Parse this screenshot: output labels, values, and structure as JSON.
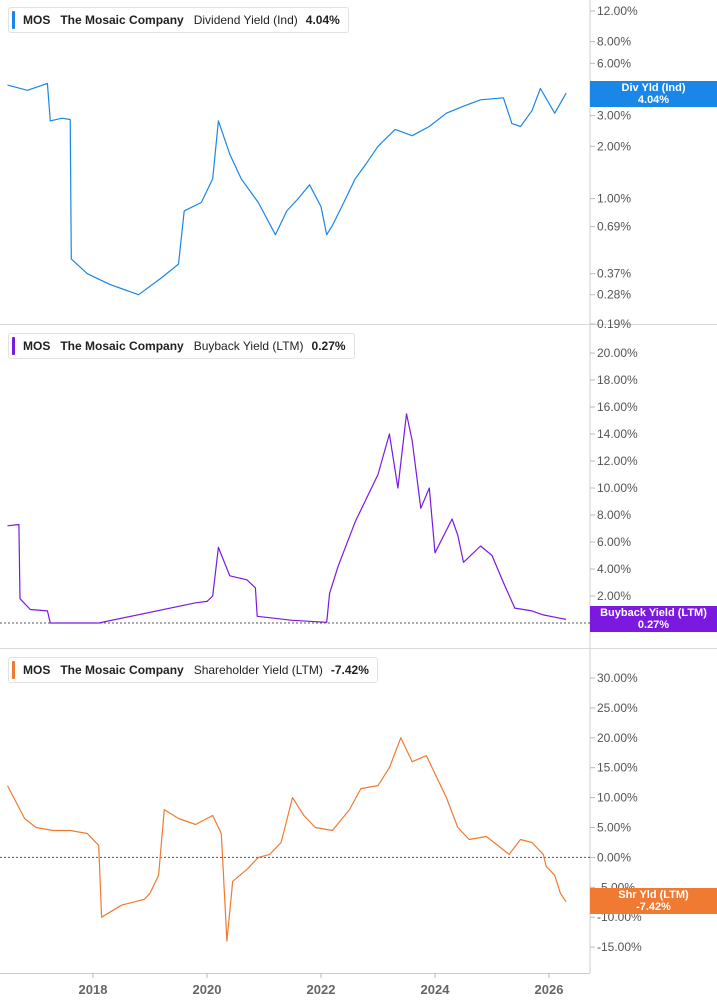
{
  "colors": {
    "dividend": "#1a86e8",
    "buyback": "#7b19e0",
    "shareholder": "#f07a32",
    "divider": "#d9d9d9"
  },
  "panels": [
    {
      "ticker": "MOS",
      "company": "The Mosaic Company",
      "metric": "Dividend Yield (Ind)",
      "value": "4.04%",
      "badge": [
        "Div Yld (Ind)",
        "4.04%"
      ]
    },
    {
      "ticker": "MOS",
      "company": "The Mosaic Company",
      "metric": "Buyback Yield (LTM)",
      "value": "0.27%",
      "badge": [
        "Buyback Yield (LTM)",
        "0.27%"
      ]
    },
    {
      "ticker": "MOS",
      "company": "The Mosaic Company",
      "metric": "Shareholder Yield (LTM)",
      "value": "-7.42%",
      "badge": [
        "Shr Yld (LTM)",
        "-7.42%"
      ]
    }
  ],
  "chart_data": [
    {
      "type": "line",
      "scale": "log",
      "title": "Dividend Yield (Ind)",
      "y_ticks": [
        "12.00%",
        "8.00%",
        "6.00%",
        "4.00%",
        "3.00%",
        "2.00%",
        "1.00%",
        "0.69%",
        "0.37%",
        "0.28%",
        "0.19%"
      ],
      "y_tick_values": [
        12,
        8,
        6,
        4,
        3,
        2,
        1,
        0.69,
        0.37,
        0.28,
        0.19
      ],
      "series": [
        {
          "values": [
            [
              2016.5,
              4.5
            ],
            [
              2016.85,
              4.2
            ],
            [
              2017.2,
              4.6
            ],
            [
              2017.25,
              2.8
            ],
            [
              2017.45,
              2.9
            ],
            [
              2017.6,
              2.85
            ],
            [
              2017.62,
              0.45
            ],
            [
              2017.9,
              0.37
            ],
            [
              2018.3,
              0.32
            ],
            [
              2018.8,
              0.28
            ],
            [
              2019.2,
              0.35
            ],
            [
              2019.5,
              0.42
            ],
            [
              2019.6,
              0.85
            ],
            [
              2019.9,
              0.95
            ],
            [
              2020.1,
              1.3
            ],
            [
              2020.2,
              2.8
            ],
            [
              2020.4,
              1.8
            ],
            [
              2020.6,
              1.3
            ],
            [
              2020.9,
              0.95
            ],
            [
              2021.2,
              0.62
            ],
            [
              2021.4,
              0.85
            ],
            [
              2021.6,
              1.0
            ],
            [
              2021.8,
              1.2
            ],
            [
              2022.0,
              0.9
            ],
            [
              2022.1,
              0.62
            ],
            [
              2022.2,
              0.7
            ],
            [
              2022.4,
              0.95
            ],
            [
              2022.6,
              1.3
            ],
            [
              2022.8,
              1.6
            ],
            [
              2023.0,
              2.0
            ],
            [
              2023.3,
              2.5
            ],
            [
              2023.6,
              2.3
            ],
            [
              2023.9,
              2.6
            ],
            [
              2024.2,
              3.1
            ],
            [
              2024.5,
              3.4
            ],
            [
              2024.8,
              3.7
            ],
            [
              2025.2,
              3.8
            ],
            [
              2025.35,
              2.7
            ],
            [
              2025.5,
              2.6
            ],
            [
              2025.7,
              3.2
            ],
            [
              2025.85,
              4.3
            ],
            [
              2026.1,
              3.1
            ],
            [
              2026.3,
              4.04
            ]
          ]
        }
      ]
    },
    {
      "type": "line",
      "title": "Buyback Yield (LTM)",
      "y_ticks": [
        "20.00%",
        "18.00%",
        "16.00%",
        "14.00%",
        "12.00%",
        "10.00%",
        "8.00%",
        "6.00%",
        "4.00%",
        "2.00%"
      ],
      "y_tick_values": [
        20,
        18,
        16,
        14,
        12,
        10,
        8,
        6,
        4,
        2
      ],
      "reference_line": 0,
      "series": [
        {
          "values": [
            [
              2016.5,
              7.2
            ],
            [
              2016.7,
              7.3
            ],
            [
              2016.72,
              1.8
            ],
            [
              2016.9,
              1.0
            ],
            [
              2017.2,
              0.9
            ],
            [
              2017.25,
              0.0
            ],
            [
              2017.6,
              0.0
            ],
            [
              2018.1,
              0.0
            ],
            [
              2019.8,
              1.5
            ],
            [
              2020.0,
              1.6
            ],
            [
              2020.1,
              2.0
            ],
            [
              2020.2,
              5.6
            ],
            [
              2020.4,
              3.5
            ],
            [
              2020.7,
              3.2
            ],
            [
              2020.85,
              2.6
            ],
            [
              2020.88,
              0.5
            ],
            [
              2021.5,
              0.2
            ],
            [
              2022.1,
              0.05
            ],
            [
              2022.15,
              2.2
            ],
            [
              2022.3,
              4.2
            ],
            [
              2022.6,
              7.5
            ],
            [
              2023.0,
              11.0
            ],
            [
              2023.2,
              14.0
            ],
            [
              2023.35,
              10.0
            ],
            [
              2023.5,
              15.5
            ],
            [
              2023.6,
              13.5
            ],
            [
              2023.75,
              8.5
            ],
            [
              2023.9,
              10.0
            ],
            [
              2024.0,
              5.2
            ],
            [
              2024.3,
              7.7
            ],
            [
              2024.4,
              6.5
            ],
            [
              2024.5,
              4.5
            ],
            [
              2024.8,
              5.7
            ],
            [
              2025.0,
              5.0
            ],
            [
              2025.2,
              3.0
            ],
            [
              2025.4,
              1.1
            ],
            [
              2025.7,
              0.9
            ],
            [
              2025.9,
              0.6
            ],
            [
              2026.2,
              0.35
            ],
            [
              2026.3,
              0.27
            ]
          ]
        }
      ]
    },
    {
      "type": "line",
      "title": "Shareholder Yield (LTM)",
      "y_ticks": [
        "30.00%",
        "25.00%",
        "20.00%",
        "15.00%",
        "10.00%",
        "5.00%",
        "0.00%",
        "-5.00%",
        "-10.00%",
        "-15.00%"
      ],
      "y_tick_values": [
        30,
        25,
        20,
        15,
        10,
        5,
        0,
        -5,
        -10,
        -15
      ],
      "reference_line": 0,
      "series": [
        {
          "values": [
            [
              2016.5,
              12.0
            ],
            [
              2016.8,
              6.5
            ],
            [
              2017.0,
              5.0
            ],
            [
              2017.3,
              4.5
            ],
            [
              2017.6,
              4.5
            ],
            [
              2017.9,
              4.0
            ],
            [
              2018.1,
              2.0
            ],
            [
              2018.15,
              -10.0
            ],
            [
              2018.5,
              -8.0
            ],
            [
              2018.9,
              -7.0
            ],
            [
              2019.0,
              -6.0
            ],
            [
              2019.15,
              -3.0
            ],
            [
              2019.25,
              8.0
            ],
            [
              2019.5,
              6.5
            ],
            [
              2019.8,
              5.5
            ],
            [
              2020.1,
              7.0
            ],
            [
              2020.25,
              4.0
            ],
            [
              2020.35,
              -14.0
            ],
            [
              2020.45,
              -4.0
            ],
            [
              2020.7,
              -2.0
            ],
            [
              2020.9,
              0.0
            ],
            [
              2021.1,
              0.5
            ],
            [
              2021.3,
              2.5
            ],
            [
              2021.5,
              10.0
            ],
            [
              2021.7,
              7.0
            ],
            [
              2021.9,
              5.0
            ],
            [
              2022.2,
              4.5
            ],
            [
              2022.5,
              8.0
            ],
            [
              2022.7,
              11.5
            ],
            [
              2023.0,
              12.0
            ],
            [
              2023.2,
              15.0
            ],
            [
              2023.4,
              20.0
            ],
            [
              2023.6,
              16.0
            ],
            [
              2023.85,
              17.0
            ],
            [
              2024.0,
              14.0
            ],
            [
              2024.2,
              10.0
            ],
            [
              2024.4,
              5.0
            ],
            [
              2024.6,
              3.0
            ],
            [
              2024.9,
              3.5
            ],
            [
              2025.1,
              2.0
            ],
            [
              2025.3,
              0.5
            ],
            [
              2025.5,
              3.0
            ],
            [
              2025.7,
              2.5
            ],
            [
              2025.9,
              0.5
            ],
            [
              2025.95,
              -1.5
            ],
            [
              2026.1,
              -3.0
            ],
            [
              2026.2,
              -6.0
            ],
            [
              2026.3,
              -7.42
            ]
          ]
        }
      ]
    }
  ],
  "x_axis": {
    "ticks": [
      "2018",
      "2020",
      "2022",
      "2024",
      "2026"
    ],
    "tick_values": [
      2018,
      2020,
      2022,
      2024,
      2026
    ]
  }
}
